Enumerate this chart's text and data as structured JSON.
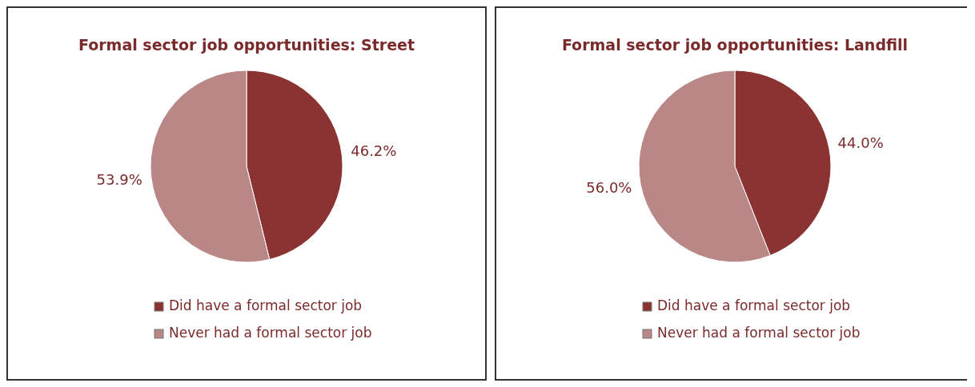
{
  "chart_data": [
    {
      "type": "pie",
      "title": "Formal sector job opportunities: Street",
      "categories": [
        "Did have a formal sector job",
        "Never had a formal sector job"
      ],
      "values": [
        46.2,
        53.9
      ],
      "colors": [
        "#8b3232",
        "#ba8787"
      ],
      "value_labels": [
        "46.2%",
        "53.9%"
      ],
      "legend": "bottom"
    },
    {
      "type": "pie",
      "title": "Formal sector job opportunities: Landfill",
      "categories": [
        "Did have a formal sector job",
        "Never had a formal sector job"
      ],
      "values": [
        44.0,
        56.0
      ],
      "colors": [
        "#8b3232",
        "#ba8787"
      ],
      "value_labels": [
        "44.0%",
        "56.0%"
      ],
      "legend": "bottom"
    }
  ]
}
